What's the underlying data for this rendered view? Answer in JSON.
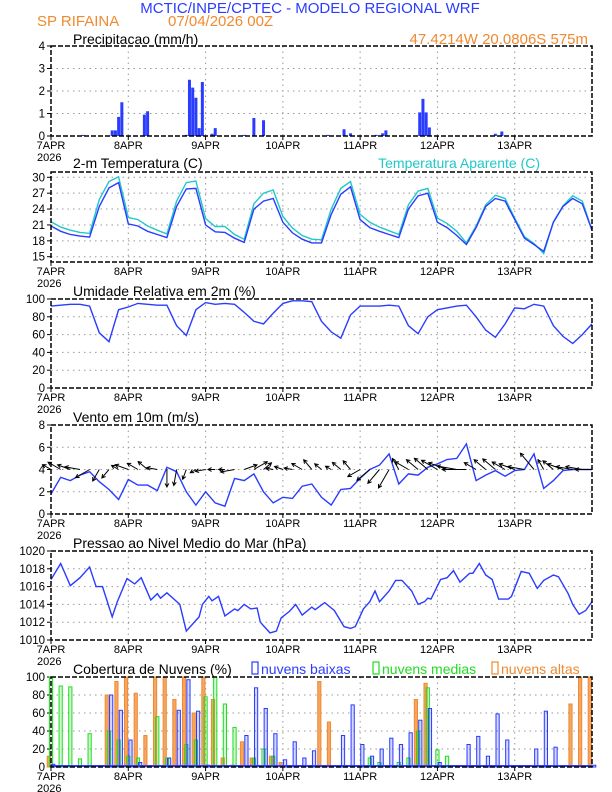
{
  "header": {
    "title": "MCTIC/INPE/CPTEC - MODELO REGIONAL WRF",
    "station": "SP RIFAINA",
    "run": "07/04/2026 00Z",
    "location": "47.4214W 20.0806S 575m"
  },
  "colors": {
    "title": "#2a3cff",
    "orange": "#f08a30",
    "blue": "#2a3cff",
    "cyan": "#20c8c8",
    "green": "#20dd20"
  },
  "x_axis": {
    "labels": [
      "7APR",
      "8APR",
      "9APR",
      "10APR",
      "11APR",
      "12APR",
      "13APR"
    ],
    "year": "2026",
    "range_hours": [
      0,
      168
    ]
  },
  "chart_data": [
    {
      "id": "precip",
      "type": "bar",
      "title": "Precipitacao (mm/h)",
      "ylim": [
        0,
        4
      ],
      "yticks": [
        "0",
        "1",
        "2",
        "3",
        "4"
      ],
      "x_hours": [
        10,
        19,
        20,
        21,
        22,
        29,
        30,
        42,
        43,
        44,
        45,
        46,
        47,
        50,
        51,
        60,
        63,
        66,
        86,
        91,
        93,
        101,
        103,
        104,
        114.5,
        115.5,
        116.5,
        117.5,
        138,
        140
      ],
      "values": [
        0.05,
        0.25,
        0.25,
        0.85,
        1.5,
        0.95,
        1.1,
        0.05,
        2.5,
        2.15,
        1.7,
        0.35,
        2.4,
        0.1,
        0.35,
        0.05,
        0.8,
        0.7,
        0.05,
        0.3,
        0.12,
        0.05,
        0.12,
        0.25,
        1.05,
        1.65,
        1.05,
        0.38,
        0.1,
        0.2
      ]
    },
    {
      "id": "temp",
      "type": "line",
      "title": "2-m Temperatura (C)",
      "legend": "Temperatura Aparente (C)",
      "ylim": [
        14,
        31
      ],
      "yticks": [
        "15",
        "18",
        "21",
        "24",
        "27",
        "30"
      ],
      "x_step_hours": 3,
      "series": [
        {
          "name": "2-m Temperatura",
          "values": [
            20.8,
            19.8,
            19.2,
            18.9,
            18.7,
            24.5,
            28.0,
            29.0,
            21.2,
            20.8,
            19.8,
            19.2,
            18.6,
            24.5,
            27.8,
            27.9,
            21.0,
            19.7,
            19.6,
            18.5,
            17.7,
            24.0,
            25.5,
            26.0,
            21.5,
            19.5,
            18.3,
            17.6,
            17.6,
            23.0,
            26.8,
            28.2,
            22.0,
            20.5,
            19.8,
            19.2,
            18.6,
            24.0,
            26.5,
            27.0,
            21.5,
            20.5,
            19.0,
            17.3,
            20.5,
            24.5,
            26.0,
            25.5,
            22.0,
            18.5,
            17.3,
            16.0,
            21.5,
            24.5,
            26.0,
            25.0,
            20.0
          ]
        },
        {
          "name": "Temperatura Aparente",
          "values": [
            21.6,
            20.6,
            20.0,
            19.6,
            19.4,
            25.8,
            29.2,
            30.1,
            22.4,
            22.0,
            20.8,
            20.0,
            19.3,
            25.5,
            29.0,
            29.3,
            22.2,
            20.7,
            20.7,
            19.2,
            18.3,
            25.0,
            27.0,
            27.6,
            22.6,
            20.4,
            19.0,
            18.3,
            18.2,
            24.0,
            27.9,
            29.2,
            23.0,
            21.5,
            20.6,
            19.9,
            19.2,
            24.8,
            27.4,
            27.9,
            22.3,
            21.3,
            19.8,
            17.6,
            20.8,
            24.8,
            26.6,
            26.0,
            22.3,
            18.8,
            17.5,
            15.6,
            21.6,
            24.6,
            26.5,
            25.5,
            20.0
          ]
        }
      ]
    },
    {
      "id": "rh",
      "type": "line",
      "title": "Umidade Relativa em 2m (%)",
      "ylim": [
        0,
        100
      ],
      "yticks": [
        "0",
        "20",
        "40",
        "60",
        "80",
        "100"
      ],
      "x_step_hours": 3,
      "values": [
        92,
        93,
        94,
        94,
        92,
        62,
        52,
        88,
        91,
        95,
        94,
        93,
        93,
        70,
        59,
        88,
        96,
        94,
        95,
        94,
        85,
        75,
        72,
        84,
        95,
        98,
        98,
        97,
        75,
        63,
        56,
        82,
        92,
        92,
        92,
        93,
        92,
        70,
        61,
        80,
        88,
        90,
        92,
        93,
        80,
        65,
        57,
        72,
        90,
        89,
        94,
        92,
        70,
        58,
        50,
        60,
        72
      ]
    },
    {
      "id": "wind",
      "type": "line",
      "title": "Vento em 10m (m/s)",
      "ylim": [
        0,
        8
      ],
      "yticks": [
        "0",
        "2",
        "4",
        "6",
        "8"
      ],
      "x_step_hours": 3,
      "speed": [
        1.8,
        3.3,
        3.0,
        3.5,
        3.8,
        2.9,
        2.2,
        1.3,
        3.1,
        2.6,
        2.6,
        2.1,
        4.2,
        3.8,
        2.0,
        0.8,
        2.0,
        1.0,
        0.7,
        3.2,
        3.0,
        3.6,
        2.0,
        1.0,
        1.5,
        1.4,
        2.5,
        2.7,
        1.5,
        0.8,
        2.2,
        2.3,
        3.2,
        4.0,
        4.4,
        5.4,
        2.7,
        3.6,
        3.5,
        4.2,
        4.5,
        4.9,
        5.0,
        6.3,
        3.0,
        3.5,
        3.9,
        3.4,
        3.9,
        4.0,
        5.4,
        2.3,
        3.0,
        3.9,
        4.0,
        4.0,
        4.0
      ],
      "direction_from_deg": [
        120,
        120,
        110,
        100,
        60,
        30,
        40,
        120,
        110,
        120,
        130,
        100,
        0,
        10,
        20,
        60,
        80,
        90,
        90,
        80,
        250,
        240,
        230,
        100,
        110,
        100,
        120,
        140,
        130,
        120,
        130,
        140,
        60,
        50,
        40,
        30,
        150,
        120,
        130,
        130,
        120,
        110,
        100,
        90,
        120,
        130,
        130,
        120,
        110,
        100,
        140,
        150,
        130,
        110,
        100,
        100,
        90
      ]
    },
    {
      "id": "pres",
      "type": "line",
      "title": "Pressao ao Nivel Medio do Mar (hPa)",
      "ylim": [
        1010,
        1020
      ],
      "yticks": [
        "1010",
        "1012",
        "1014",
        "1016",
        "1018",
        "1020"
      ],
      "x_hours": [
        0,
        3,
        6,
        9,
        12,
        14,
        16,
        19,
        20.6,
        23.6,
        26,
        28,
        31,
        33,
        34,
        36,
        40,
        42,
        46,
        47,
        49,
        50,
        52,
        54,
        57,
        58,
        60,
        62,
        64,
        65,
        68,
        70,
        71.5,
        74,
        76,
        78,
        81,
        82,
        85,
        88,
        91,
        93,
        94.5,
        97,
        99,
        100.6,
        102,
        105,
        107,
        109,
        112,
        114,
        116,
        117,
        118,
        121,
        123,
        125,
        127,
        130,
        131,
        133,
        135,
        137,
        139,
        142,
        143,
        146,
        148.5,
        151,
        153,
        156,
        157.6,
        160.6,
        162,
        164,
        166,
        168
      ],
      "values": [
        1016.8,
        1018.6,
        1016.1,
        1017.0,
        1018.2,
        1016.0,
        1016.0,
        1012.6,
        1014.3,
        1016.9,
        1016.3,
        1017.0,
        1014.5,
        1015.2,
        1014.7,
        1015.3,
        1014.0,
        1011.0,
        1012.6,
        1014.0,
        1014.9,
        1014.4,
        1014.9,
        1012.7,
        1013.5,
        1013.3,
        1014.0,
        1013.5,
        1013.6,
        1012.0,
        1010.8,
        1011.0,
        1012.5,
        1013.2,
        1014.0,
        1012.8,
        1013.7,
        1013.4,
        1014.2,
        1013.3,
        1011.5,
        1011.3,
        1011.5,
        1013.5,
        1014.3,
        1015.5,
        1014.3,
        1015.5,
        1016.7,
        1016.7,
        1015.5,
        1014.0,
        1014.3,
        1014.7,
        1014.6,
        1016.8,
        1017.0,
        1017.8,
        1016.5,
        1017.5,
        1017.5,
        1018.6,
        1017.3,
        1016.8,
        1014.6,
        1014.6,
        1014.9,
        1017.7,
        1017.5,
        1015.8,
        1016.7,
        1017.3,
        1017.1,
        1015.2,
        1014.0,
        1012.9,
        1013.3,
        1014.3
      ]
    },
    {
      "id": "cloud",
      "type": "bar",
      "title": "Cobertura de Nuvens (%)",
      "ylim": [
        0,
        100
      ],
      "yticks": [
        "0",
        "20",
        "40",
        "60",
        "80",
        "100"
      ],
      "x_step_hours": 3,
      "series": [
        {
          "name": "nuvens baixas",
          "values": [
            3,
            0,
            0,
            0,
            0,
            0,
            80,
            63,
            30,
            5,
            0,
            0,
            10,
            63,
            97,
            62,
            2,
            0,
            0,
            0,
            35,
            88,
            65,
            37,
            8,
            28,
            10,
            18,
            0,
            0,
            35,
            69,
            25,
            12,
            20,
            32,
            25,
            38,
            52,
            65,
            5,
            0,
            0,
            25,
            34,
            12,
            59,
            30,
            0,
            0,
            20,
            62,
            22,
            0,
            0,
            0,
            2
          ]
        },
        {
          "name": "nuvens medias",
          "values": [
            100,
            90,
            89,
            9,
            37,
            0,
            40,
            30,
            12,
            10,
            0,
            56,
            10,
            0,
            25,
            30,
            78,
            100,
            70,
            44,
            0,
            10,
            20,
            12,
            0,
            0,
            0,
            0,
            0,
            0,
            0,
            0,
            0,
            10,
            5,
            0,
            5,
            10,
            40,
            88,
            19,
            12,
            0,
            0,
            0,
            0,
            0,
            0,
            0,
            0,
            0,
            0,
            0,
            0,
            0,
            0,
            0
          ]
        },
        {
          "name": "nuvens altas",
          "values": [
            12,
            0,
            0,
            0,
            0,
            0,
            80,
            95,
            100,
            82,
            35,
            100,
            100,
            75,
            100,
            60,
            100,
            75,
            10,
            2,
            28,
            10,
            0,
            12,
            5,
            0,
            0,
            0,
            95,
            50,
            0,
            0,
            0,
            0,
            0,
            0,
            0,
            0,
            75,
            93,
            0,
            0,
            0,
            0,
            0,
            0,
            0,
            0,
            0,
            0,
            0,
            0,
            0,
            0,
            70,
            100,
            100
          ]
        }
      ]
    }
  ]
}
